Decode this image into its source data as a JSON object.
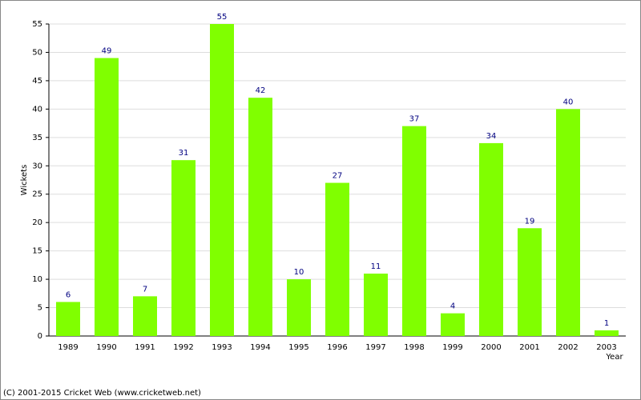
{
  "chart_data": {
    "type": "bar",
    "categories": [
      "1989",
      "1990",
      "1991",
      "1992",
      "1993",
      "1994",
      "1995",
      "1996",
      "1997",
      "1998",
      "1999",
      "2000",
      "2001",
      "2002",
      "2003"
    ],
    "values": [
      6,
      49,
      7,
      31,
      55,
      42,
      10,
      27,
      11,
      37,
      4,
      34,
      19,
      40,
      1
    ],
    "color": "#80ff00",
    "value_label_color": "#000080",
    "ylabel": "Wickets",
    "xlabel": "Year",
    "ylim": [
      0,
      55
    ],
    "yticks": [
      0,
      5,
      10,
      15,
      20,
      25,
      30,
      35,
      40,
      45,
      50,
      55
    ],
    "grid": true
  },
  "footer": "(C) 2001-2015 Cricket Web (www.cricketweb.net)"
}
